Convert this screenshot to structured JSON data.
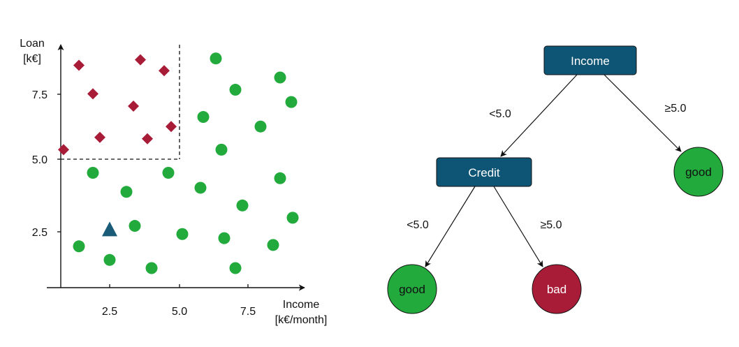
{
  "scatter": {
    "y_axis_label_line1": "Loan",
    "y_axis_label_line2": "[k€]",
    "x_axis_label_line1": "Income",
    "x_axis_label_line2": "[k€/month]",
    "x_ticks": [
      "2.5",
      "5.0",
      "7.5"
    ],
    "y_ticks": [
      "2.5",
      "5.0",
      "7.5"
    ],
    "colors": {
      "good": "#22aa3c",
      "bad": "#a81c38",
      "query": "#1a5b78"
    }
  },
  "chart_data": {
    "type": "scatter",
    "xlabel": "Income [k€/month]",
    "ylabel": "Loan [k€]",
    "xlim": [
      0.6,
      9.0
    ],
    "ylim": [
      0.6,
      9.6
    ],
    "threshold": {
      "x": 5.0,
      "y": 5.0
    },
    "series": [
      {
        "name": "good",
        "marker": "circle",
        "points": [
          [
            6.3,
            8.7
          ],
          [
            8.6,
            8.0
          ],
          [
            7.0,
            7.55
          ],
          [
            9.0,
            7.1
          ],
          [
            5.85,
            6.55
          ],
          [
            7.9,
            6.2
          ],
          [
            6.5,
            5.35
          ],
          [
            1.9,
            4.5
          ],
          [
            4.6,
            4.5
          ],
          [
            5.75,
            3.95
          ],
          [
            8.6,
            4.3
          ],
          [
            3.1,
            3.8
          ],
          [
            7.25,
            3.3
          ],
          [
            3.4,
            2.55
          ],
          [
            9.05,
            2.85
          ],
          [
            5.1,
            2.25
          ],
          [
            6.6,
            2.1
          ],
          [
            1.4,
            1.8
          ],
          [
            8.35,
            1.85
          ],
          [
            2.5,
            1.3
          ],
          [
            4.0,
            1.0
          ],
          [
            7.0,
            1.0
          ]
        ]
      },
      {
        "name": "bad",
        "marker": "diamond",
        "points": [
          [
            1.4,
            8.45
          ],
          [
            3.6,
            8.65
          ],
          [
            4.45,
            8.25
          ],
          [
            1.9,
            7.4
          ],
          [
            3.35,
            6.95
          ],
          [
            4.7,
            6.2
          ],
          [
            2.15,
            5.8
          ],
          [
            3.85,
            5.75
          ],
          [
            0.85,
            5.35
          ]
        ]
      },
      {
        "name": "query",
        "marker": "triangle",
        "points": [
          [
            2.5,
            2.4
          ]
        ]
      }
    ]
  },
  "tree": {
    "root": {
      "label": "Income"
    },
    "credit": {
      "label": "Credit"
    },
    "leaf_good_right": {
      "label": "good"
    },
    "leaf_good_left": {
      "label": "good"
    },
    "leaf_bad": {
      "label": "bad"
    },
    "edge_root_left": "<5.0",
    "edge_root_right": "≥5.0",
    "edge_credit_left": "<5.0",
    "edge_credit_right": "≥5.0",
    "colors": {
      "node": "#0e5475",
      "good": "#22aa3c",
      "bad": "#a81c38"
    }
  }
}
